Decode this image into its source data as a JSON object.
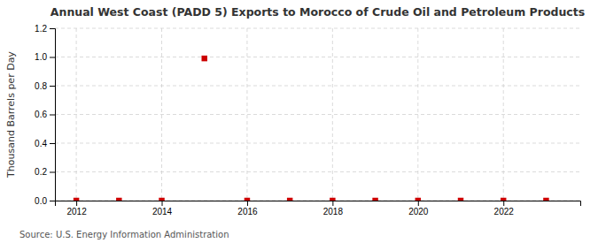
{
  "chart_data": {
    "type": "scatter",
    "title": "Annual West Coast (PADD 5) Exports to Morocco of Crude Oil and Petroleum Products",
    "ylabel": "Thousand Barrels per Day",
    "annotations": [
      "Source: U.S. Energy Information Administration"
    ],
    "x": [
      2012,
      2013,
      2014,
      2015,
      2016,
      2017,
      2018,
      2019,
      2020,
      2021,
      2022,
      2023
    ],
    "values": [
      0.0,
      0.0,
      0.0,
      0.99,
      0.0,
      0.0,
      0.0,
      0.0,
      0.0,
      0.0,
      0.0,
      0.0
    ],
    "color": "#cc0000",
    "marker": "square",
    "xlim": [
      2011.5,
      2023.8
    ],
    "ylim": [
      0.0,
      1.2
    ],
    "xticks": [
      2012,
      2014,
      2016,
      2018,
      2020,
      2022
    ],
    "yticks": [
      {
        "value": 0.0,
        "label": "0.0"
      },
      0.2,
      0.4,
      0.6,
      0.8,
      {
        "value": 1.0,
        "label": "1.0"
      },
      1.2
    ],
    "grid": true
  }
}
